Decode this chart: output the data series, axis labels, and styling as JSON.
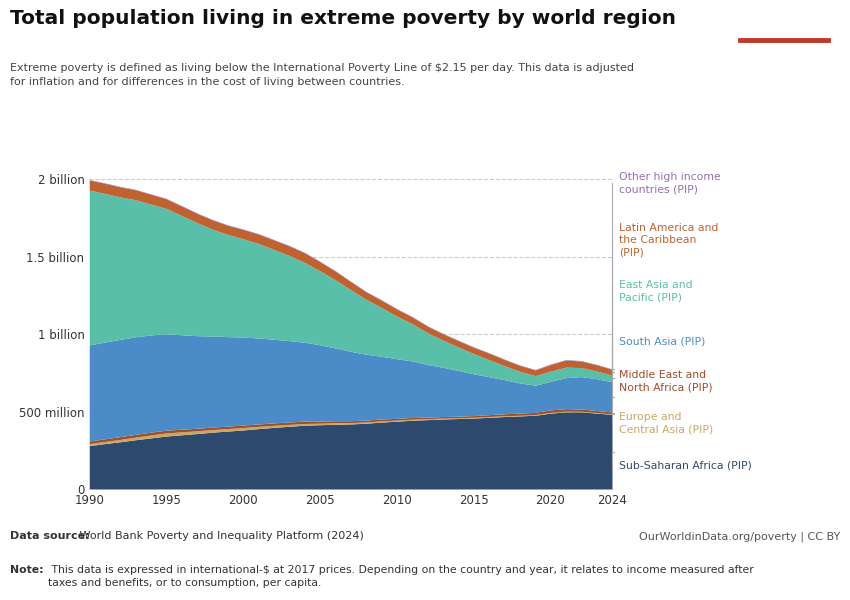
{
  "title": "Total population living in extreme poverty by world region",
  "subtitle": "Extreme poverty is defined as living below the International Poverty Line of $2.15 per day. This data is adjusted\nfor inflation and for differences in the cost of living between countries.",
  "footnote_source": "World Bank Poverty and Inequality Platform (2024)",
  "footnote_source_bold": "Data source:",
  "footnote_right": "OurWorldinData.org/poverty | CC BY",
  "footnote_note_bold": "Note:",
  "footnote_note": " This data is expressed in international-$ at 2017 prices. Depending on the country and year, it relates to income measured after\ntaxes and benefits, or to consumption, per capita.",
  "years": [
    1990,
    1991,
    1992,
    1993,
    1994,
    1995,
    1996,
    1997,
    1998,
    1999,
    2000,
    2001,
    2002,
    2003,
    2004,
    2005,
    2006,
    2007,
    2008,
    2009,
    2010,
    2011,
    2012,
    2013,
    2014,
    2015,
    2016,
    2017,
    2018,
    2019,
    2020,
    2021,
    2022,
    2023,
    2024
  ],
  "regions": [
    {
      "name": "Sub-Saharan Africa (PIP)",
      "color": "#2d4a6e",
      "values": [
        280,
        293,
        305,
        318,
        330,
        342,
        350,
        358,
        367,
        374,
        381,
        390,
        398,
        405,
        412,
        415,
        418,
        420,
        425,
        432,
        438,
        444,
        448,
        452,
        455,
        458,
        463,
        468,
        472,
        476,
        490,
        498,
        498,
        490,
        482
      ]
    },
    {
      "name": "Europe and\nCentral Asia (PIP)",
      "color": "#c8a862",
      "values": [
        13,
        14,
        15,
        17,
        19,
        20,
        19,
        18,
        17,
        16,
        16,
        14,
        13,
        12,
        11,
        10,
        10,
        9,
        8,
        8,
        7,
        7,
        6,
        6,
        5,
        5,
        5,
        5,
        4,
        4,
        5,
        5,
        4,
        4,
        3
      ]
    },
    {
      "name": "Middle East and\nNorth Africa (PIP)",
      "color": "#9e4f2b",
      "values": [
        17,
        17,
        18,
        18,
        18,
        18,
        17,
        16,
        16,
        16,
        16,
        16,
        16,
        16,
        15,
        14,
        13,
        12,
        12,
        12,
        11,
        11,
        10,
        10,
        10,
        11,
        12,
        13,
        14,
        15,
        16,
        16,
        14,
        13,
        12
      ]
    },
    {
      "name": "South Asia (PIP)",
      "color": "#4b8cc8",
      "values": [
        620,
        625,
        628,
        630,
        628,
        622,
        610,
        598,
        588,
        578,
        568,
        555,
        540,
        525,
        510,
        492,
        470,
        448,
        425,
        405,
        385,
        365,
        340,
        318,
        295,
        270,
        245,
        220,
        195,
        175,
        185,
        200,
        210,
        205,
        195
      ]
    },
    {
      "name": "East Asia and\nPacific (PIP)",
      "color": "#5abfa8",
      "values": [
        1000,
        960,
        920,
        885,
        845,
        810,
        770,
        730,
        690,
        660,
        635,
        610,
        580,
        550,
        515,
        478,
        440,
        398,
        355,
        315,
        275,
        240,
        205,
        175,
        152,
        130,
        110,
        90,
        75,
        62,
        65,
        68,
        58,
        50,
        43
      ]
    },
    {
      "name": "Latin America and\nthe Caribbean\n(PIP)",
      "color": "#c0622f",
      "values": [
        65,
        65,
        65,
        64,
        63,
        62,
        61,
        60,
        60,
        59,
        60,
        61,
        61,
        62,
        62,
        59,
        56,
        52,
        48,
        47,
        46,
        44,
        42,
        41,
        41,
        41,
        42,
        40,
        38,
        37,
        43,
        46,
        42,
        40,
        38
      ]
    },
    {
      "name": "Other high income\ncountries (PIP)",
      "color": "#9370b5",
      "values": [
        3,
        3,
        3,
        3,
        3,
        3,
        3,
        3,
        3,
        3,
        3,
        3,
        3,
        3,
        3,
        3,
        3,
        3,
        3,
        3,
        3,
        3,
        3,
        3,
        3,
        3,
        3,
        3,
        3,
        3,
        3,
        3,
        3,
        3,
        3
      ]
    }
  ],
  "ytick_labels": [
    "0",
    "500 million",
    "1 billion",
    "1.5 billion",
    "2 billion"
  ],
  "background_color": "#ffffff",
  "logo_bg": "#1a3a5c",
  "logo_red": "#c0392b"
}
